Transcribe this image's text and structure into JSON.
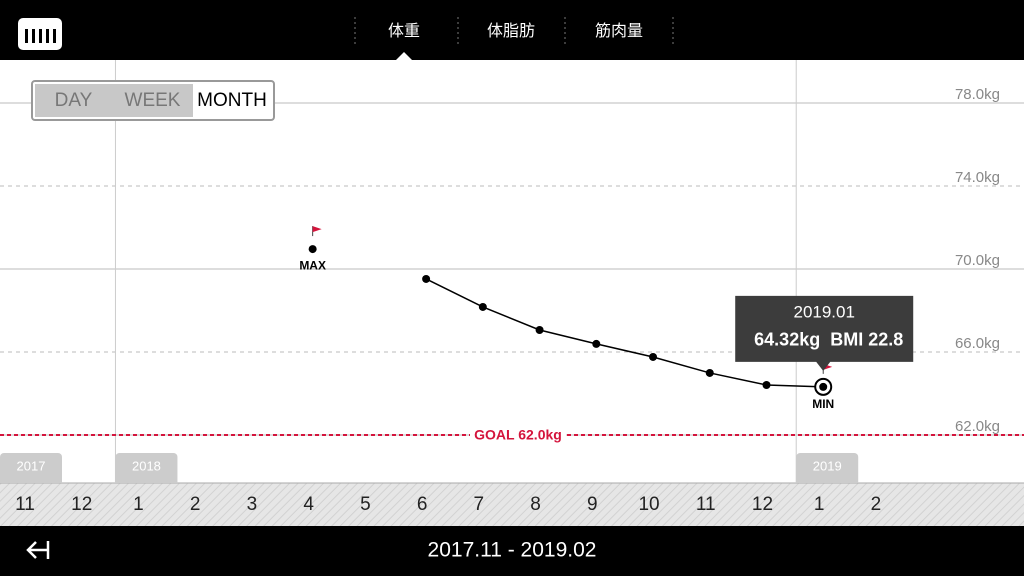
{
  "header": {
    "tabs": [
      "体重",
      "体脂肪",
      "筋肉量"
    ],
    "selected_tab": 0
  },
  "range_buttons": {
    "labels": [
      "DAY",
      "WEEK",
      "MONTH"
    ],
    "selected": 2
  },
  "chart_data": {
    "type": "line",
    "categories": [
      "11",
      "12",
      "1",
      "2",
      "3",
      "4",
      "5",
      "6",
      "7",
      "8",
      "9",
      "10",
      "11",
      "12",
      "1",
      "2"
    ],
    "year_labels": [
      "2017",
      null,
      "2018",
      null,
      null,
      null,
      null,
      null,
      null,
      null,
      null,
      null,
      null,
      null,
      "2019",
      null
    ],
    "values": [
      null,
      null,
      null,
      null,
      null,
      70.96,
      null,
      69.52,
      68.17,
      67.06,
      66.39,
      65.76,
      64.99,
      64.41,
      64.32,
      null
    ],
    "color": "#000000",
    "ylim": [
      60,
      80
    ],
    "yticks": [
      {
        "value": 78,
        "label": "78.0kg"
      },
      {
        "value": 74,
        "label": "74.0kg"
      },
      {
        "value": 70,
        "label": "70.0kg"
      },
      {
        "value": 66,
        "label": "66.0kg"
      },
      {
        "value": 62,
        "label": "62.0kg"
      }
    ],
    "grid": true,
    "max_label": "MAX",
    "min_label": "MIN",
    "goal": {
      "value": 62,
      "label": "GOAL 62.0kg",
      "color": "#d4143c"
    },
    "tooltip": {
      "date": "2019.01",
      "weight": "64.32kg",
      "bmi": "BMI 22.8"
    }
  },
  "footer": {
    "range": "2017.11 - 2019.02"
  }
}
